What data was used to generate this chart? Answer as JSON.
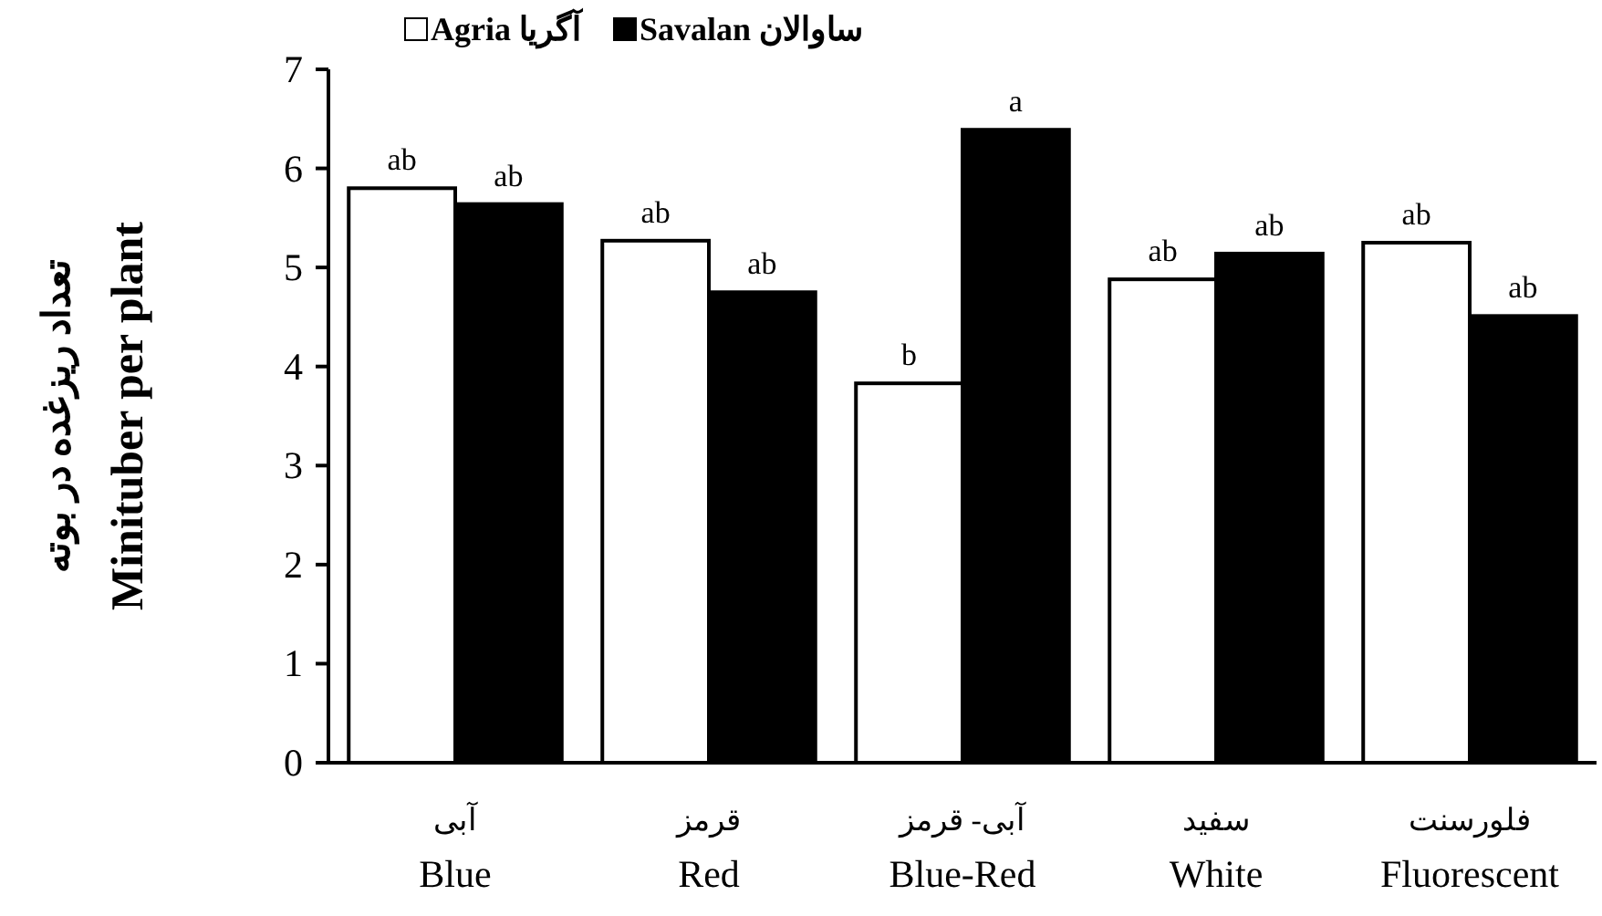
{
  "chart_data": {
    "type": "bar",
    "categories": [
      "آبی\nBlue",
      "قرمز\nRed",
      "آبی- قرمز\nBlue-Red",
      "سفید\nWhite",
      "فلورسنت\nFluorescent"
    ],
    "ylabel": "تعداد ریزغده در بوته\nMinituber per plant",
    "ylim": [
      0,
      7
    ],
    "yticks": [
      0,
      1,
      2,
      3,
      4,
      5,
      6,
      7
    ],
    "legend": "top",
    "series": [
      {
        "name": "Agria آگریا",
        "color": "#ffffff",
        "values": [
          5.8,
          5.27,
          3.83,
          4.88,
          5.25
        ],
        "value_labels": [
          "ab",
          "ab",
          "b",
          "ab",
          "ab"
        ]
      },
      {
        "name": "Savalan ساوالان",
        "color": "#000000",
        "values": [
          5.64,
          4.75,
          6.39,
          5.14,
          4.51
        ],
        "value_labels": [
          "ab",
          "ab",
          "a",
          "ab",
          "ab"
        ]
      }
    ]
  }
}
